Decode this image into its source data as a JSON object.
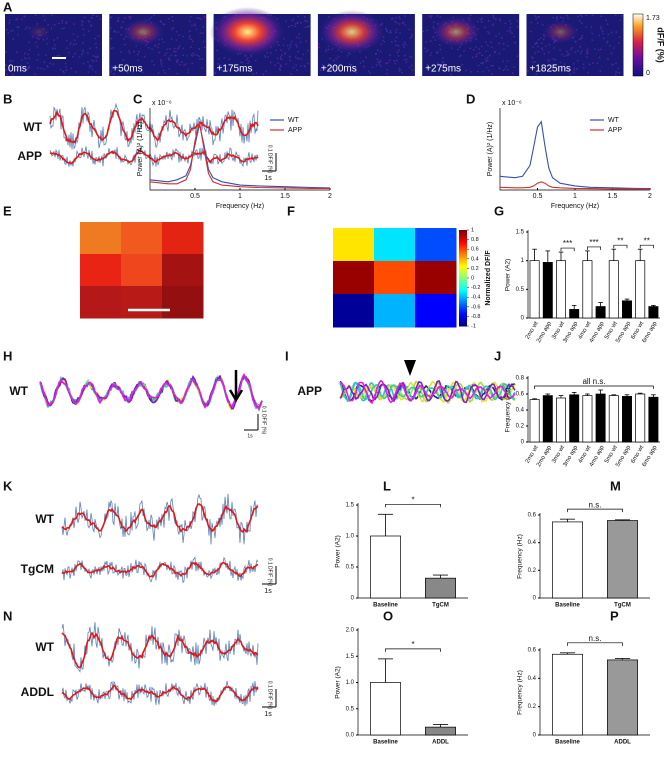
{
  "panels": [
    {
      "label": "A",
      "type": "image-strip",
      "frames": [
        "0ms",
        "+50ms",
        "+175ms",
        "+200ms",
        "+275ms",
        "+1825ms"
      ],
      "colorbar_title": "dF/F (%)",
      "colorbar_max": "1.73",
      "colorbar_min": "0"
    },
    {
      "label": "B",
      "type": "traces",
      "trace_labels": [
        "WT",
        "APP"
      ],
      "scale_y": "0.1 DF/F (%)",
      "scale_x": "1s"
    },
    {
      "label": "C",
      "type": "line",
      "ylabel": "Power (A)² (1/Hz)",
      "exponent": "x 10⁻⁶",
      "xlabel": "Frequency (Hz)",
      "xlim": [
        0,
        2
      ],
      "xticks": [
        0.5,
        1,
        1.5,
        2
      ],
      "ylim": [
        0,
        2
      ],
      "x": [
        0,
        0.2,
        0.3,
        0.4,
        0.45,
        0.5,
        0.55,
        0.6,
        0.65,
        0.7,
        0.8,
        1,
        1.2,
        1.5,
        1.8,
        2
      ],
      "series": [
        {
          "name": "WT",
          "color": "#3a4fa8",
          "values": [
            0.25,
            0.2,
            0.25,
            0.35,
            0.6,
            1.1,
            1.6,
            1.1,
            0.5,
            0.3,
            0.2,
            0.12,
            0.1,
            0.08,
            0.06,
            0.05
          ]
        },
        {
          "name": "APP",
          "color": "#d03030",
          "values": [
            0.2,
            0.15,
            0.15,
            0.25,
            0.5,
            1.2,
            1.65,
            1.0,
            0.4,
            0.2,
            0.12,
            0.08,
            0.06,
            0.05,
            0.04,
            0.04
          ]
        }
      ]
    },
    {
      "label": "D",
      "type": "line",
      "ylabel": "Power (A)² (1/Hz)",
      "exponent": "x 10⁻⁶",
      "xlabel": "Frequency (Hz)",
      "xlim": [
        0,
        2
      ],
      "xticks": [
        0.5,
        1,
        1.5,
        2
      ],
      "ylim": [
        0,
        3
      ],
      "x": [
        0,
        0.2,
        0.3,
        0.4,
        0.45,
        0.5,
        0.55,
        0.6,
        0.65,
        0.7,
        0.8,
        1,
        1.2,
        1.5,
        1.8,
        2
      ],
      "series": [
        {
          "name": "WT",
          "color": "#3a4fa8",
          "values": [
            0.5,
            0.45,
            0.5,
            0.9,
            1.6,
            2.3,
            2.5,
            1.6,
            0.8,
            0.45,
            0.25,
            0.15,
            0.1,
            0.08,
            0.06,
            0.05
          ]
        },
        {
          "name": "APP",
          "color": "#d03030",
          "values": [
            0.1,
            0.08,
            0.08,
            0.1,
            0.15,
            0.25,
            0.3,
            0.25,
            0.15,
            0.1,
            0.08,
            0.06,
            0.05,
            0.04,
            0.04,
            0.03
          ]
        }
      ]
    },
    {
      "label": "E",
      "type": "color-grid",
      "colors": [
        [
          "#f07a22",
          "#f05a1e",
          "#e42412"
        ],
        [
          "#ea2414",
          "#f0461e",
          "#a41212"
        ],
        [
          "#b41818",
          "#b81a18",
          "#941010"
        ]
      ]
    },
    {
      "label": "F",
      "type": "heatmap",
      "colorbar_label": "Normalized DF/F",
      "clim": [
        -1,
        1
      ],
      "cticks": [
        -1,
        -0.8,
        -0.6,
        -0.4,
        -0.2,
        0,
        0.2,
        0.4,
        0.6,
        0.8,
        1
      ],
      "values": [
        [
          0.3,
          -0.3,
          -0.6
        ],
        [
          0.95,
          0.6,
          0.95
        ],
        [
          -0.95,
          -0.4,
          -0.75
        ]
      ]
    },
    {
      "label": "G",
      "type": "bar",
      "ylabel": "Power (A2)",
      "ylim": [
        0,
        1.5
      ],
      "yticks": [
        0,
        0.5,
        1,
        1.5
      ],
      "categories": [
        "2mo wt",
        "2mo app",
        "3mo wt",
        "3mo app",
        "4mo wt",
        "4mo app",
        "5mo wt",
        "5mo app",
        "6mo wt",
        "6mo app"
      ],
      "values": [
        1,
        0.97,
        1,
        0.15,
        1,
        0.2,
        1,
        0.3,
        1,
        0.2
      ],
      "errors": [
        0.2,
        0.2,
        0.15,
        0.07,
        0.17,
        0.07,
        0.2,
        0.03,
        0.2,
        0.02
      ],
      "colors": [
        "#ffffff",
        "#000000",
        "#ffffff",
        "#000000",
        "#ffffff",
        "#000000",
        "#ffffff",
        "#000000",
        "#ffffff",
        "#000000"
      ],
      "annotations": [
        "***",
        "***",
        "**",
        "**"
      ]
    },
    {
      "label": "H",
      "type": "multitrace",
      "trace_label": "WT",
      "scale_y": "0.1 DF/F (%)",
      "scale_x": "1s"
    },
    {
      "label": "I",
      "type": "multitrace",
      "trace_label": "APP"
    },
    {
      "label": "J",
      "type": "bar",
      "ylabel": "Frequency (Hz)",
      "ylim": [
        0,
        0.8
      ],
      "yticks": [
        0,
        0.2,
        0.4,
        0.6,
        0.8
      ],
      "categories": [
        "2mo wt",
        "2mo app",
        "3mo wt",
        "3mo app",
        "4mo wt",
        "4mo app",
        "5mo wt",
        "5mo app",
        "6mo wt",
        "6mo app"
      ],
      "values": [
        0.53,
        0.58,
        0.55,
        0.59,
        0.58,
        0.6,
        0.58,
        0.57,
        0.6,
        0.56
      ],
      "errors": [
        0.01,
        0.02,
        0.03,
        0.03,
        0.02,
        0.05,
        0.01,
        0.02,
        0.01,
        0.03
      ],
      "colors": [
        "#ffffff",
        "#000000",
        "#ffffff",
        "#000000",
        "#ffffff",
        "#000000",
        "#ffffff",
        "#000000",
        "#ffffff",
        "#000000"
      ],
      "annotations": [
        "all n.s."
      ]
    },
    {
      "label": "K",
      "type": "traces",
      "trace_labels": [
        "WT",
        "TgCM"
      ],
      "scale_y": "0.1 DF/F (%)",
      "scale_x": "1s"
    },
    {
      "label": "L",
      "type": "bar",
      "ylabel": "Power (A2)",
      "ylim": [
        0,
        1.5
      ],
      "yticks": [
        0,
        0.5,
        {
          "value": 1,
          "label": "1.0"
        },
        1.5
      ],
      "categories": [
        "Baseline",
        "TgCM"
      ],
      "values": [
        1,
        0.32
      ],
      "errors": [
        0.35,
        0.05
      ],
      "colors": [
        "#ffffff",
        "#888888"
      ],
      "annotations": [
        "*"
      ]
    },
    {
      "label": "M",
      "type": "bar",
      "ylabel": "Frequency (Hz)",
      "ylim": [
        0,
        0.6
      ],
      "yticks": [
        0,
        0.2,
        0.4,
        0.6
      ],
      "categories": [
        "Baseline",
        "TgCM"
      ],
      "values": [
        0.55,
        0.56
      ],
      "errors": [
        0.02,
        0.005
      ],
      "colors": [
        "#ffffff",
        "#999999"
      ],
      "annotations": [
        "n.s."
      ]
    },
    {
      "label": "N",
      "type": "traces",
      "trace_labels": [
        "WT",
        "ADDL"
      ],
      "scale_y": "0.1 DF/F (%)",
      "scale_x": "1s"
    },
    {
      "label": "O",
      "type": "bar",
      "ylabel": "Power (A2)",
      "ylim": [
        0,
        2
      ],
      "yticks": [
        {
          "value": 0,
          "label": "0.0"
        },
        0.5,
        {
          "value": 1,
          "label": "1.0"
        },
        1.5,
        {
          "value": 2,
          "label": "2.0"
        }
      ],
      "categories": [
        "Baseline",
        "ADDL"
      ],
      "values": [
        1,
        0.15
      ],
      "errors": [
        0.45,
        0.05
      ],
      "colors": [
        "#ffffff",
        "#888888"
      ],
      "annotations": [
        "*"
      ]
    },
    {
      "label": "P",
      "type": "bar",
      "ylabel": "Frequency (Hz)",
      "ylim": [
        0,
        0.6
      ],
      "yticks": [
        0,
        0.2,
        0.4,
        0.6
      ],
      "categories": [
        "Baseline",
        "ADDL"
      ],
      "values": [
        0.57,
        0.53
      ],
      "errors": [
        0.01,
        0.01
      ],
      "colors": [
        "#ffffff",
        "#999999"
      ],
      "annotations": [
        "n.s."
      ]
    }
  ]
}
